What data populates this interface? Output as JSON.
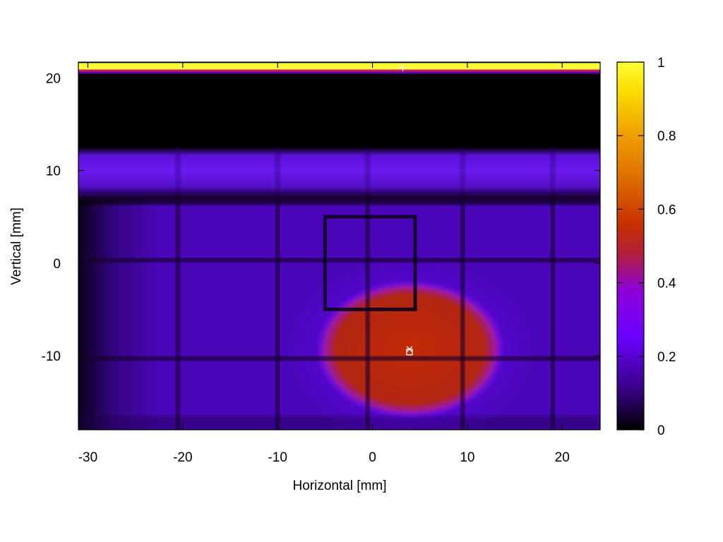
{
  "chart_data": {
    "type": "heatmap",
    "title": "",
    "xlabel": "Horizontal [mm]",
    "ylabel": "Vertical [mm]",
    "xlim": [
      -31,
      24
    ],
    "ylim": [
      -18,
      21.7
    ],
    "x_ticks": [
      -30,
      -20,
      -10,
      0,
      10,
      20
    ],
    "x_tick_labels": [
      "-30",
      "-20",
      "-10",
      "0",
      "10",
      "20"
    ],
    "y_ticks": [
      -10,
      0,
      10,
      20
    ],
    "y_tick_labels": [
      "-10",
      "0",
      "10",
      "20"
    ],
    "colorbar": {
      "range": [
        0,
        1
      ],
      "ticks": [
        0,
        0.2,
        0.4,
        0.6,
        0.8,
        1
      ],
      "tick_labels": [
        "0",
        "0.2",
        "0.4",
        "0.6",
        "0.8",
        "1"
      ],
      "palette": [
        "#000000",
        "#33007a",
        "#6a00ff",
        "#8f00d8",
        "#b2203a",
        "#c73000",
        "#dd6c00",
        "#ef9e00",
        "#fbdc00",
        "#ffff33"
      ]
    },
    "grid": false,
    "legend": "none",
    "regions": {
      "bright_band": {
        "y": [
          20.9,
          21.6
        ],
        "value": 1.0
      },
      "beam_spot": {
        "center": [
          4,
          -9.3
        ],
        "radius": [
          10,
          7.5
        ],
        "value": 0.55
      },
      "upper_band": {
        "y": [
          7.5,
          12.5
        ],
        "value": 0.32
      },
      "background": {
        "value": 0.2
      },
      "dark_rows": [
        -10.3,
        0.3,
        7
      ],
      "dark_columns": [
        -20.5,
        -10,
        -0.5,
        9.5,
        19
      ],
      "frame_corners": [
        [
          -5,
          5
        ],
        [
          4.5,
          5
        ],
        [
          4.5,
          -5
        ],
        [
          -5,
          -5
        ]
      ]
    },
    "markers": [
      {
        "symbol": "x",
        "x": 3.9,
        "y": -9.3
      },
      {
        "symbol": "square",
        "x": 3.9,
        "y": -9.6
      },
      {
        "symbol": "+",
        "x": 3.2,
        "y": 21.1
      }
    ]
  }
}
